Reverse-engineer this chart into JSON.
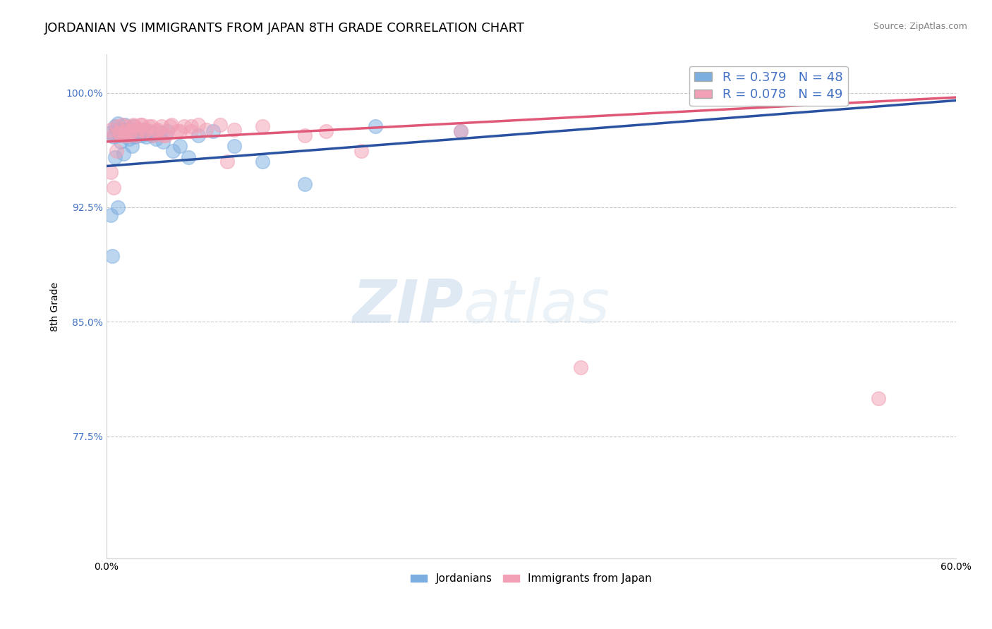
{
  "title": "JORDANIAN VS IMMIGRANTS FROM JAPAN 8TH GRADE CORRELATION CHART",
  "source_text": "Source: ZipAtlas.com",
  "ylabel": "8th Grade",
  "xlim": [
    0.0,
    0.6
  ],
  "ylim": [
    0.695,
    1.025
  ],
  "xticks": [
    0.0,
    0.1,
    0.2,
    0.3,
    0.4,
    0.5,
    0.6
  ],
  "xtick_labels": [
    "0.0%",
    "",
    "",
    "",
    "",
    "",
    "60.0%"
  ],
  "yticks": [
    0.775,
    0.85,
    0.925,
    1.0
  ],
  "ytick_labels": [
    "77.5%",
    "85.0%",
    "92.5%",
    "100.0%"
  ],
  "blue_R": 0.379,
  "blue_N": 48,
  "pink_R": 0.078,
  "pink_N": 49,
  "blue_color": "#7daee0",
  "pink_color": "#f2a0b5",
  "blue_line_color": "#2952a0",
  "pink_line_color": "#e05878",
  "legend_label_blue": "Jordanians",
  "legend_label_pink": "Immigrants from Japan",
  "watermark_zip": "ZIP",
  "watermark_atlas": "atlas",
  "background_color": "#ffffff",
  "grid_color": "#bbbbbb",
  "title_fontsize": 13,
  "axis_fontsize": 10,
  "blue_scatter_x": [
    0.003,
    0.005,
    0.006,
    0.007,
    0.008,
    0.009,
    0.01,
    0.01,
    0.011,
    0.012,
    0.013,
    0.014,
    0.015,
    0.016,
    0.017,
    0.018,
    0.019,
    0.02,
    0.021,
    0.022,
    0.023,
    0.024,
    0.025,
    0.026,
    0.027,
    0.028,
    0.03,
    0.032,
    0.035,
    0.038,
    0.04,
    0.043,
    0.047,
    0.052,
    0.058,
    0.065,
    0.075,
    0.09,
    0.11,
    0.14,
    0.003,
    0.004,
    0.006,
    0.008,
    0.012,
    0.018,
    0.25,
    0.19
  ],
  "blue_scatter_y": [
    0.974,
    0.971,
    0.978,
    0.976,
    0.98,
    0.972,
    0.975,
    0.968,
    0.976,
    0.972,
    0.979,
    0.974,
    0.976,
    0.97,
    0.975,
    0.972,
    0.978,
    0.971,
    0.975,
    0.972,
    0.976,
    0.974,
    0.972,
    0.975,
    0.976,
    0.971,
    0.975,
    0.972,
    0.97,
    0.974,
    0.968,
    0.975,
    0.962,
    0.965,
    0.958,
    0.972,
    0.975,
    0.965,
    0.955,
    0.94,
    0.92,
    0.893,
    0.958,
    0.925,
    0.96,
    0.965,
    0.975,
    0.978
  ],
  "pink_scatter_x": [
    0.003,
    0.005,
    0.007,
    0.009,
    0.011,
    0.013,
    0.015,
    0.017,
    0.019,
    0.021,
    0.023,
    0.025,
    0.027,
    0.03,
    0.033,
    0.036,
    0.039,
    0.042,
    0.046,
    0.05,
    0.055,
    0.06,
    0.065,
    0.07,
    0.08,
    0.09,
    0.11,
    0.14,
    0.18,
    0.25,
    0.003,
    0.005,
    0.007,
    0.01,
    0.013,
    0.016,
    0.02,
    0.024,
    0.028,
    0.032,
    0.036,
    0.04,
    0.045,
    0.052,
    0.06,
    0.085,
    0.155,
    0.335,
    0.545
  ],
  "pink_scatter_y": [
    0.976,
    0.972,
    0.978,
    0.974,
    0.979,
    0.972,
    0.978,
    0.975,
    0.979,
    0.972,
    0.976,
    0.979,
    0.975,
    0.978,
    0.972,
    0.976,
    0.978,
    0.972,
    0.979,
    0.975,
    0.978,
    0.975,
    0.979,
    0.976,
    0.979,
    0.976,
    0.978,
    0.972,
    0.962,
    0.975,
    0.948,
    0.938,
    0.962,
    0.972,
    0.975,
    0.972,
    0.978,
    0.979,
    0.976,
    0.978,
    0.975,
    0.972,
    0.978,
    0.975,
    0.978,
    0.955,
    0.975,
    0.82,
    0.8
  ],
  "blue_trendline_x": [
    0.0,
    0.6
  ],
  "blue_trendline_y": [
    0.952,
    0.995
  ],
  "pink_trendline_x": [
    0.0,
    0.6
  ],
  "pink_trendline_y": [
    0.968,
    0.997
  ]
}
